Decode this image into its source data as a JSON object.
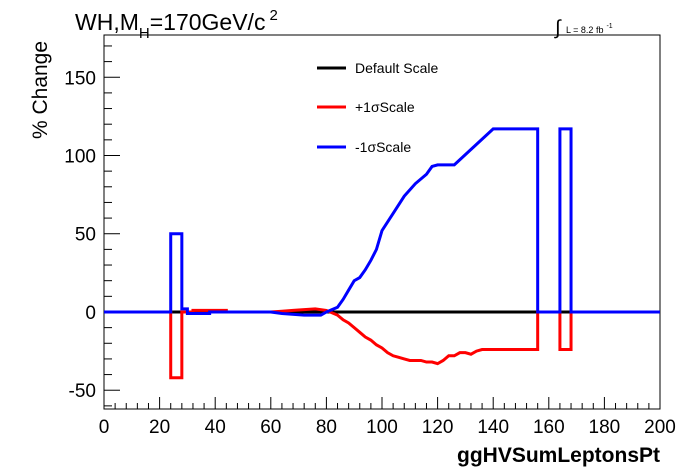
{
  "header": {
    "title_prefix": "WH,M",
    "title_sub": "H",
    "title_suffix": "=170GeV/c",
    "title_sup": "2",
    "lumi_symbol": "∫",
    "lumi_text": "L = 8.2 fb",
    "lumi_sup": "-1"
  },
  "chart_data": {
    "type": "line",
    "title": "WH,MH=170GeV/c2",
    "xlabel": "ggHVSumLeptonsPt",
    "ylabel": "% Change",
    "xlim": [
      0,
      200
    ],
    "ylim": [
      -62,
      177
    ],
    "x_ticks": [
      0,
      20,
      40,
      60,
      80,
      100,
      120,
      140,
      160,
      180,
      200
    ],
    "y_ticks": [
      -50,
      0,
      50,
      100,
      150
    ],
    "grid": false,
    "legend_position": "top-center",
    "legend": [
      {
        "label": "Default Scale",
        "color": "#000000"
      },
      {
        "label": "+1σScale",
        "color": "#ff0000"
      },
      {
        "label": "-1σScale",
        "color": "#0000ff"
      }
    ],
    "series": [
      {
        "name": "Default Scale",
        "color": "#000000",
        "points": [
          [
            0,
            0
          ],
          [
            200,
            0
          ]
        ]
      },
      {
        "name": "+1σScale",
        "color": "#ff0000",
        "points": [
          [
            0,
            0
          ],
          [
            24,
            0
          ],
          [
            24,
            -42
          ],
          [
            28,
            -42
          ],
          [
            28,
            0
          ],
          [
            32,
            0
          ],
          [
            32,
            1
          ],
          [
            44,
            1
          ],
          [
            44,
            0
          ],
          [
            60,
            0
          ],
          [
            64,
            0.5
          ],
          [
            68,
            1
          ],
          [
            72,
            1.5
          ],
          [
            76,
            2
          ],
          [
            80,
            1
          ],
          [
            84,
            -2
          ],
          [
            86,
            -5
          ],
          [
            88,
            -7
          ],
          [
            90,
            -10
          ],
          [
            92,
            -13
          ],
          [
            94,
            -16
          ],
          [
            96,
            -18
          ],
          [
            98,
            -21
          ],
          [
            100,
            -23
          ],
          [
            102,
            -26
          ],
          [
            104,
            -28
          ],
          [
            106,
            -29
          ],
          [
            108,
            -30
          ],
          [
            110,
            -31
          ],
          [
            112,
            -31
          ],
          [
            114,
            -31
          ],
          [
            116,
            -32
          ],
          [
            118,
            -32
          ],
          [
            120,
            -33
          ],
          [
            122,
            -31
          ],
          [
            124,
            -28
          ],
          [
            126,
            -28
          ],
          [
            128,
            -26
          ],
          [
            130,
            -26
          ],
          [
            132,
            -27
          ],
          [
            134,
            -25
          ],
          [
            136,
            -24
          ],
          [
            156,
            -24
          ],
          [
            156,
            0
          ],
          [
            164,
            0
          ],
          [
            164,
            -24
          ],
          [
            168,
            -24
          ],
          [
            168,
            0
          ],
          [
            200,
            0
          ]
        ]
      },
      {
        "name": "-1σScale",
        "color": "#0000ff",
        "points": [
          [
            0,
            0
          ],
          [
            24,
            0
          ],
          [
            24,
            50
          ],
          [
            28,
            50
          ],
          [
            28,
            2
          ],
          [
            30,
            2
          ],
          [
            30,
            -1
          ],
          [
            38,
            -1
          ],
          [
            38,
            0
          ],
          [
            60,
            0
          ],
          [
            64,
            -1
          ],
          [
            72,
            -2
          ],
          [
            78,
            -2
          ],
          [
            80,
            0
          ],
          [
            84,
            3
          ],
          [
            86,
            8
          ],
          [
            88,
            14
          ],
          [
            90,
            20
          ],
          [
            92,
            22
          ],
          [
            94,
            27
          ],
          [
            96,
            33
          ],
          [
            98,
            40
          ],
          [
            100,
            52
          ],
          [
            104,
            63
          ],
          [
            108,
            74
          ],
          [
            112,
            82
          ],
          [
            116,
            88
          ],
          [
            118,
            93
          ],
          [
            120,
            94
          ],
          [
            124,
            94
          ],
          [
            126,
            94
          ],
          [
            140,
            117
          ],
          [
            156,
            117
          ],
          [
            156,
            0
          ],
          [
            164,
            0
          ],
          [
            164,
            117
          ],
          [
            168,
            117
          ],
          [
            168,
            0
          ],
          [
            200,
            0
          ]
        ]
      }
    ]
  }
}
